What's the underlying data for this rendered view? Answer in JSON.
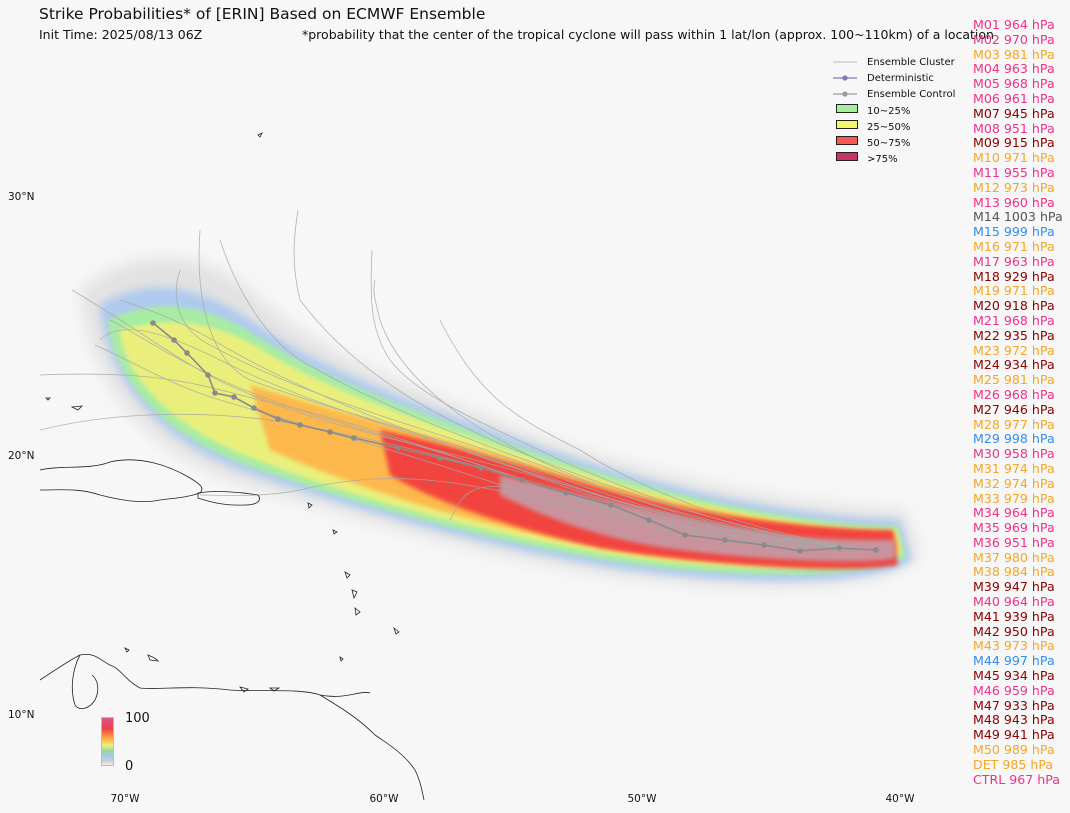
{
  "header": {
    "title": "Strike Probabilities* of [ERIN] Based on ECMWF Ensemble",
    "init_time": "Init Time: 2025/08/13 06Z",
    "footnote": "*probability that the center of the tropical cyclone will pass within 1 lat/lon (approx. 100~110km) of a location"
  },
  "axes": {
    "lat_labels": [
      "30°N",
      "20°N",
      "10°N"
    ],
    "lon_labels": [
      "70°W",
      "60°W",
      "50°W",
      "40°W"
    ]
  },
  "legend": {
    "items": [
      {
        "label": "Ensemble Cluster",
        "kind": "line",
        "color": "#bbbbbb"
      },
      {
        "label": "Deterministic",
        "kind": "line-marker",
        "color": "#7b7bb8"
      },
      {
        "label": "Ensemble Control",
        "kind": "line-marker",
        "color": "#9a9a9a"
      },
      {
        "label": "10~25%",
        "kind": "swatch",
        "color": "#a8eea0"
      },
      {
        "label": "25~50%",
        "kind": "swatch",
        "color": "#f5f56a"
      },
      {
        "label": "50~75%",
        "kind": "swatch",
        "color": "#f25a55"
      },
      {
        "label": ">75%",
        "kind": "swatch",
        "color": "#c8336a"
      }
    ]
  },
  "colorbar": {
    "max_label": "100",
    "min_label": "0"
  },
  "pressure_colors": {
    "pink": "#f0308a",
    "orange": "#f5a623",
    "darkred": "#8b0000",
    "gray": "#555555",
    "blue": "#2f8fef"
  },
  "members": [
    {
      "text": "M01 964 hPa",
      "color": "#f0308a"
    },
    {
      "text": "M02 970 hPa",
      "color": "#f0308a"
    },
    {
      "text": "M03 981 hPa",
      "color": "#f5a623"
    },
    {
      "text": "M04 963 hPa",
      "color": "#f0308a"
    },
    {
      "text": "M05 968 hPa",
      "color": "#f0308a"
    },
    {
      "text": "M06 961 hPa",
      "color": "#f0308a"
    },
    {
      "text": "M07 945 hPa",
      "color": "#8b0000"
    },
    {
      "text": "M08 951 hPa",
      "color": "#f0308a"
    },
    {
      "text": "M09 915 hPa",
      "color": "#8b0000"
    },
    {
      "text": "M10 971 hPa",
      "color": "#f5a623"
    },
    {
      "text": "M11 955 hPa",
      "color": "#f0308a"
    },
    {
      "text": "M12 973 hPa",
      "color": "#f5a623"
    },
    {
      "text": "M13 960 hPa",
      "color": "#f0308a"
    },
    {
      "text": "M14 1003 hPa",
      "color": "#555555"
    },
    {
      "text": "M15 999 hPa",
      "color": "#2f8fef"
    },
    {
      "text": "M16 971 hPa",
      "color": "#f5a623"
    },
    {
      "text": "M17 963 hPa",
      "color": "#f0308a"
    },
    {
      "text": "M18 929 hPa",
      "color": "#8b0000"
    },
    {
      "text": "M19 971 hPa",
      "color": "#f5a623"
    },
    {
      "text": "M20 918 hPa",
      "color": "#8b0000"
    },
    {
      "text": "M21 968 hPa",
      "color": "#f0308a"
    },
    {
      "text": "M22 935 hPa",
      "color": "#8b0000"
    },
    {
      "text": "M23 972 hPa",
      "color": "#f5a623"
    },
    {
      "text": "M24 934 hPa",
      "color": "#8b0000"
    },
    {
      "text": "M25 981 hPa",
      "color": "#f5a623"
    },
    {
      "text": "M26 968 hPa",
      "color": "#f0308a"
    },
    {
      "text": "M27 946 hPa",
      "color": "#8b0000"
    },
    {
      "text": "M28 977 hPa",
      "color": "#f5a623"
    },
    {
      "text": "M29 998 hPa",
      "color": "#2f8fef"
    },
    {
      "text": "M30 958 hPa",
      "color": "#f0308a"
    },
    {
      "text": "M31 974 hPa",
      "color": "#f5a623"
    },
    {
      "text": "M32 974 hPa",
      "color": "#f5a623"
    },
    {
      "text": "M33 979 hPa",
      "color": "#f5a623"
    },
    {
      "text": "M34 964 hPa",
      "color": "#f0308a"
    },
    {
      "text": "M35 969 hPa",
      "color": "#f0308a"
    },
    {
      "text": "M36 951 hPa",
      "color": "#f0308a"
    },
    {
      "text": "M37 980 hPa",
      "color": "#f5a623"
    },
    {
      "text": "M38 984 hPa",
      "color": "#f5a623"
    },
    {
      "text": "M39 947 hPa",
      "color": "#8b0000"
    },
    {
      "text": "M40 964 hPa",
      "color": "#f0308a"
    },
    {
      "text": "M41 939 hPa",
      "color": "#8b0000"
    },
    {
      "text": "M42 950 hPa",
      "color": "#8b0000"
    },
    {
      "text": "M43 973 hPa",
      "color": "#f5a623"
    },
    {
      "text": "M44 997 hPa",
      "color": "#2f8fef"
    },
    {
      "text": "M45 934 hPa",
      "color": "#8b0000"
    },
    {
      "text": "M46 959 hPa",
      "color": "#f0308a"
    },
    {
      "text": "M47 933 hPa",
      "color": "#8b0000"
    },
    {
      "text": "M48 943 hPa",
      "color": "#8b0000"
    },
    {
      "text": "M49 941 hPa",
      "color": "#8b0000"
    },
    {
      "text": "M50 989 hPa",
      "color": "#f5a623"
    },
    {
      "text": "DET 985 hPa",
      "color": "#f5a623"
    },
    {
      "text": "CTRL 967 hPa",
      "color": "#f0308a"
    }
  ]
}
